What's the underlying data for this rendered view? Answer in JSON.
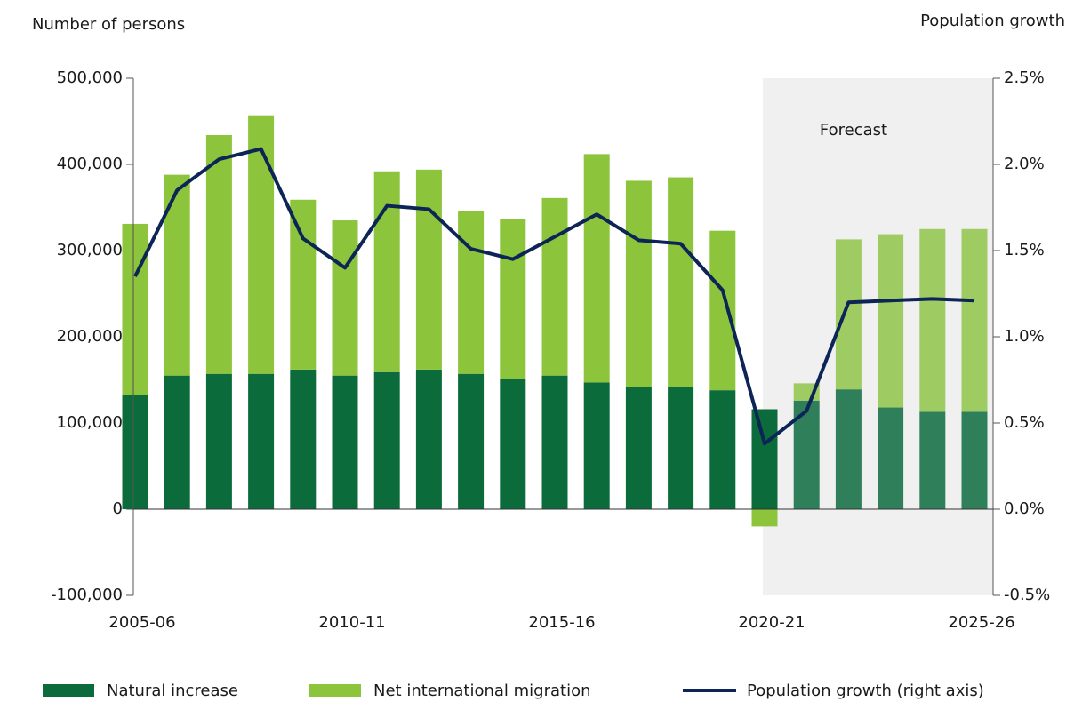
{
  "chart_data": {
    "type": "bar_line",
    "y_label": "Number  of persons",
    "y2_label": "Population  growth",
    "categories": [
      "2005-06",
      null,
      null,
      null,
      null,
      "2010-11",
      null,
      null,
      null,
      null,
      "2015-16",
      null,
      null,
      null,
      null,
      "2020-21",
      null,
      null,
      null,
      null,
      "2025-26"
    ],
    "series": [
      {
        "name": "Natural increase",
        "type": "bar",
        "color": "#0b6b3a",
        "forecast_color": "#2e7f5a",
        "values": [
          133000,
          155000,
          157000,
          157000,
          162000,
          155000,
          159000,
          162000,
          157000,
          151000,
          155000,
          147000,
          142000,
          142000,
          138000,
          116000,
          126000,
          139000,
          118000,
          113000,
          113000
        ]
      },
      {
        "name": "Net international migration",
        "type": "bar",
        "color": "#8cc43c",
        "forecast_color": "#9ecb62",
        "values": [
          198000,
          233000,
          277000,
          300000,
          197000,
          180000,
          233000,
          232000,
          189000,
          186000,
          206000,
          265000,
          239000,
          243000,
          185000,
          -20000,
          20000,
          174000,
          201000,
          212000,
          212000
        ]
      },
      {
        "name": "Population growth (right axis)",
        "type": "line",
        "axis": "y2",
        "color": "#0c2556",
        "values": [
          1.35,
          1.85,
          2.03,
          2.09,
          1.57,
          1.4,
          1.76,
          1.74,
          1.51,
          1.45,
          1.58,
          1.71,
          1.56,
          1.54,
          1.27,
          0.38,
          0.57,
          1.2,
          1.21,
          1.22,
          1.21
        ]
      }
    ],
    "forecast": {
      "label": "Forecast",
      "from": 15,
      "color": "#f0f0f0"
    },
    "ylim": [
      -100000,
      500000
    ],
    "yticks": [
      {
        "value": -100000,
        "label": "-100,000"
      },
      0,
      {
        "value": 100000,
        "label": "100,000"
      },
      {
        "value": 200000,
        "label": "200,000"
      },
      {
        "value": 300000,
        "label": "300,000"
      },
      {
        "value": 400000,
        "label": "400,000"
      },
      {
        "value": 500000,
        "label": "500,000"
      }
    ],
    "y2lim": [
      -0.5,
      2.5
    ],
    "y2ticks": [
      {
        "value": -0.5,
        "label": "-0.5%"
      },
      {
        "value": 0,
        "label": "0.0%"
      },
      {
        "value": 0.5,
        "label": "0.5%"
      },
      {
        "value": 1,
        "label": "1.0%"
      },
      {
        "value": 1.5,
        "label": "1.5%"
      },
      {
        "value": 2,
        "label": "2.0%"
      },
      {
        "value": 2.5,
        "label": "2.5%"
      }
    ],
    "legend": "bottom"
  }
}
